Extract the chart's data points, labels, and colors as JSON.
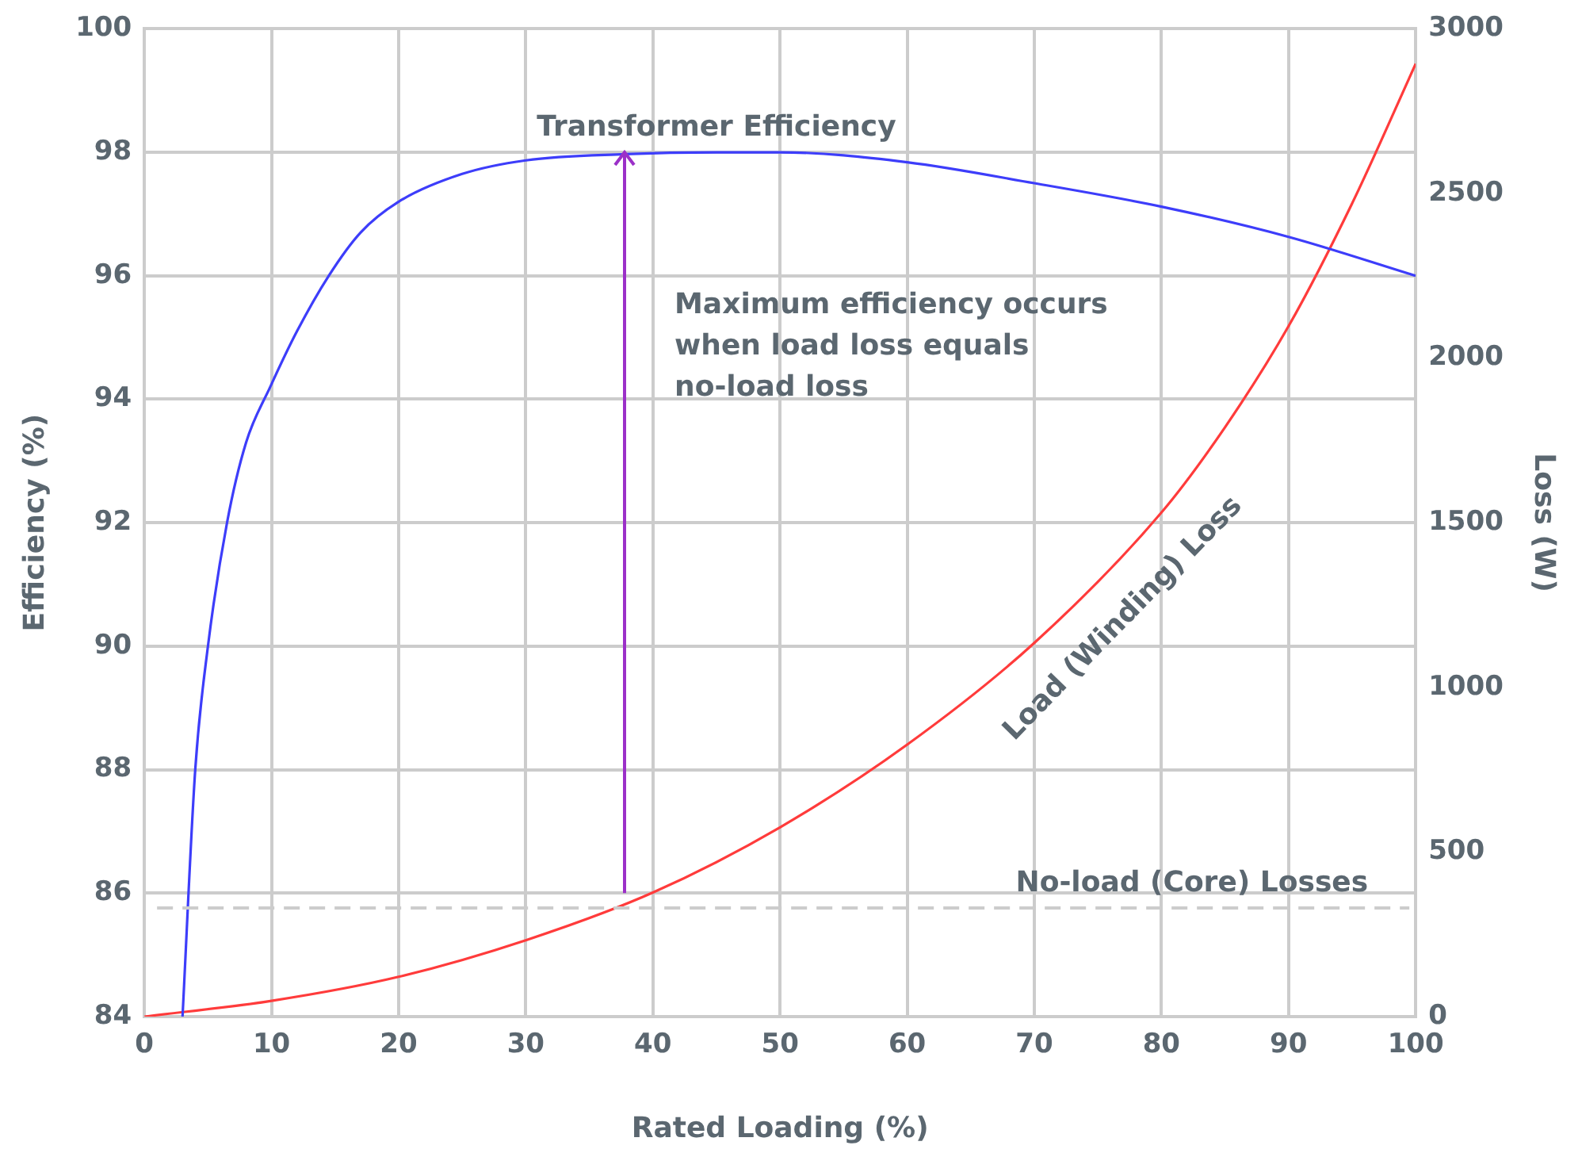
{
  "chart_data": {
    "type": "line",
    "xlabel": "Rated Loading (%)",
    "ylabel": "Efficiency (%)",
    "y2label": "Loss (W)",
    "xlim": [
      0,
      100
    ],
    "xticks": [
      0,
      10,
      20,
      30,
      40,
      50,
      60,
      70,
      80,
      90,
      100
    ],
    "ylim": [
      84,
      100
    ],
    "yticks": [
      84,
      86,
      88,
      90,
      92,
      94,
      96,
      98,
      100
    ],
    "y2lim": [
      0,
      3000
    ],
    "y2ticks": [
      0,
      500,
      1000,
      1500,
      2000,
      2500,
      3000
    ],
    "grid": true,
    "legend": false,
    "marker": "none",
    "line_style": "solid",
    "series": [
      {
        "name": "Transformer Efficiency",
        "color": "#3d3dfa",
        "x": [
          3,
          4,
          5,
          6.5,
          8,
          9.9,
          12,
          14.5,
          17,
          20,
          25,
          30,
          37.8,
          45,
          50,
          60,
          70,
          80,
          90,
          100
        ],
        "values": [
          84,
          88,
          90,
          92,
          93.3,
          94.2,
          95.1,
          96,
          96.7,
          97.2,
          97.65,
          97.87,
          97.97,
          98,
          98,
          97.84,
          97.5,
          97.12,
          96.63,
          96
        ]
      },
      {
        "name": "Load (Winding) Loss",
        "color": "#ff3b3b",
        "axis": "y2",
        "x": [
          0,
          10,
          20,
          30,
          40,
          50,
          60,
          70,
          80,
          85,
          90,
          95,
          100
        ],
        "values": [
          0,
          48,
          121,
          232,
          377,
          575,
          826,
          1135,
          1531,
          1790,
          2097,
          2470,
          2894
        ]
      }
    ],
    "ref_lines": [
      {
        "axis": "y2",
        "value": 330,
        "label": "No-load (Core) Losses",
        "color": "#cccccc",
        "line_style": "dashed"
      }
    ],
    "annotations": [
      "Maximum efficiency occurs\nwhen load loss equals\nno-load loss"
    ]
  }
}
